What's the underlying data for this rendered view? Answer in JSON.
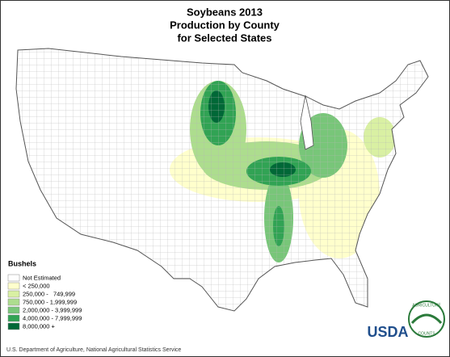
{
  "title": [
    "Soybeans 2013",
    "Production by County",
    "for Selected States"
  ],
  "legend": {
    "title": "Bushels",
    "items": [
      {
        "label": "Not Estimated",
        "color": "#ffffff"
      },
      {
        "label": "< 250,000",
        "color": "#ffffcc"
      },
      {
        "label": "250,000 -   749,999",
        "color": "#d9f0a3"
      },
      {
        "label": "750,000 - 1,999,999",
        "color": "#addd8e"
      },
      {
        "label": "2,000,000 - 3,999,999",
        "color": "#78c679"
      },
      {
        "label": "4,000,000 - 7,999,999",
        "color": "#31a354"
      },
      {
        "label": "8,000,000 +",
        "color": "#006837"
      }
    ]
  },
  "footer": "U.S. Department of Agriculture, National Agricultural Statistics Service",
  "logo": {
    "text": "USDA",
    "arc_top": "AGRICULTURE",
    "arc_bottom": "COUNTS"
  }
}
